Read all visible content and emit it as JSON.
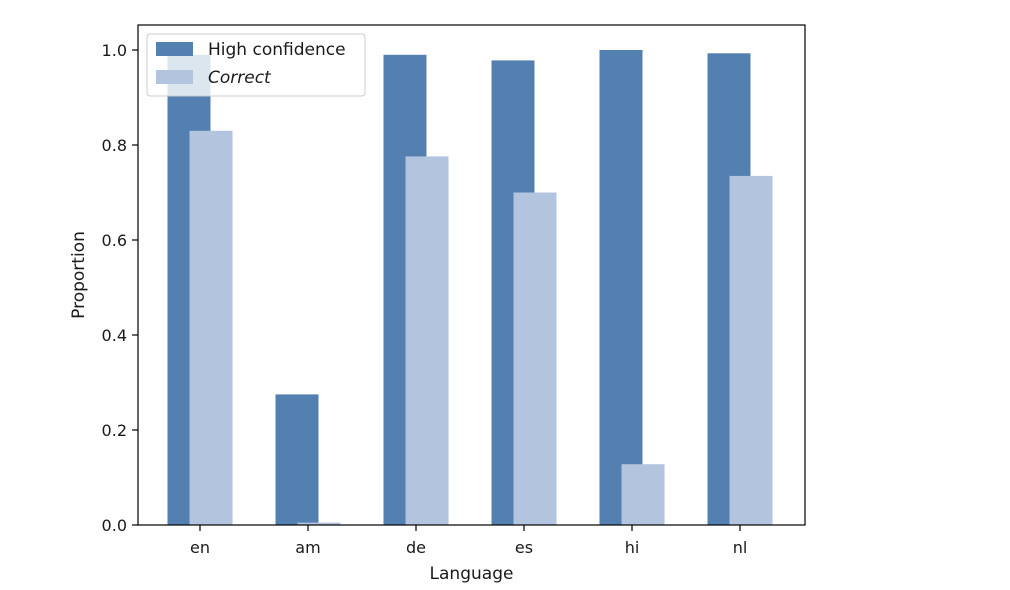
{
  "chart_data": {
    "type": "bar",
    "categories": [
      "en",
      "am",
      "de",
      "es",
      "hi",
      "nl"
    ],
    "series": [
      {
        "name": "High confidence",
        "values": [
          0.99,
          0.275,
          0.99,
          0.978,
          1.0,
          0.993
        ]
      },
      {
        "name": "Correct",
        "values": [
          0.83,
          0.005,
          0.776,
          0.7,
          0.128,
          0.735
        ]
      }
    ],
    "colors": [
      "#5380b1",
      "#b3c4de"
    ],
    "xlabel": "Language",
    "ylabel": "Proportion",
    "ylim": [
      0,
      1.0
    ],
    "yticks": [
      "0.0",
      "0.2",
      "0.4",
      "0.6",
      "0.8",
      "1.0"
    ],
    "legend": "top-left",
    "legend_italic": [
      false,
      true
    ],
    "grid": false
  }
}
